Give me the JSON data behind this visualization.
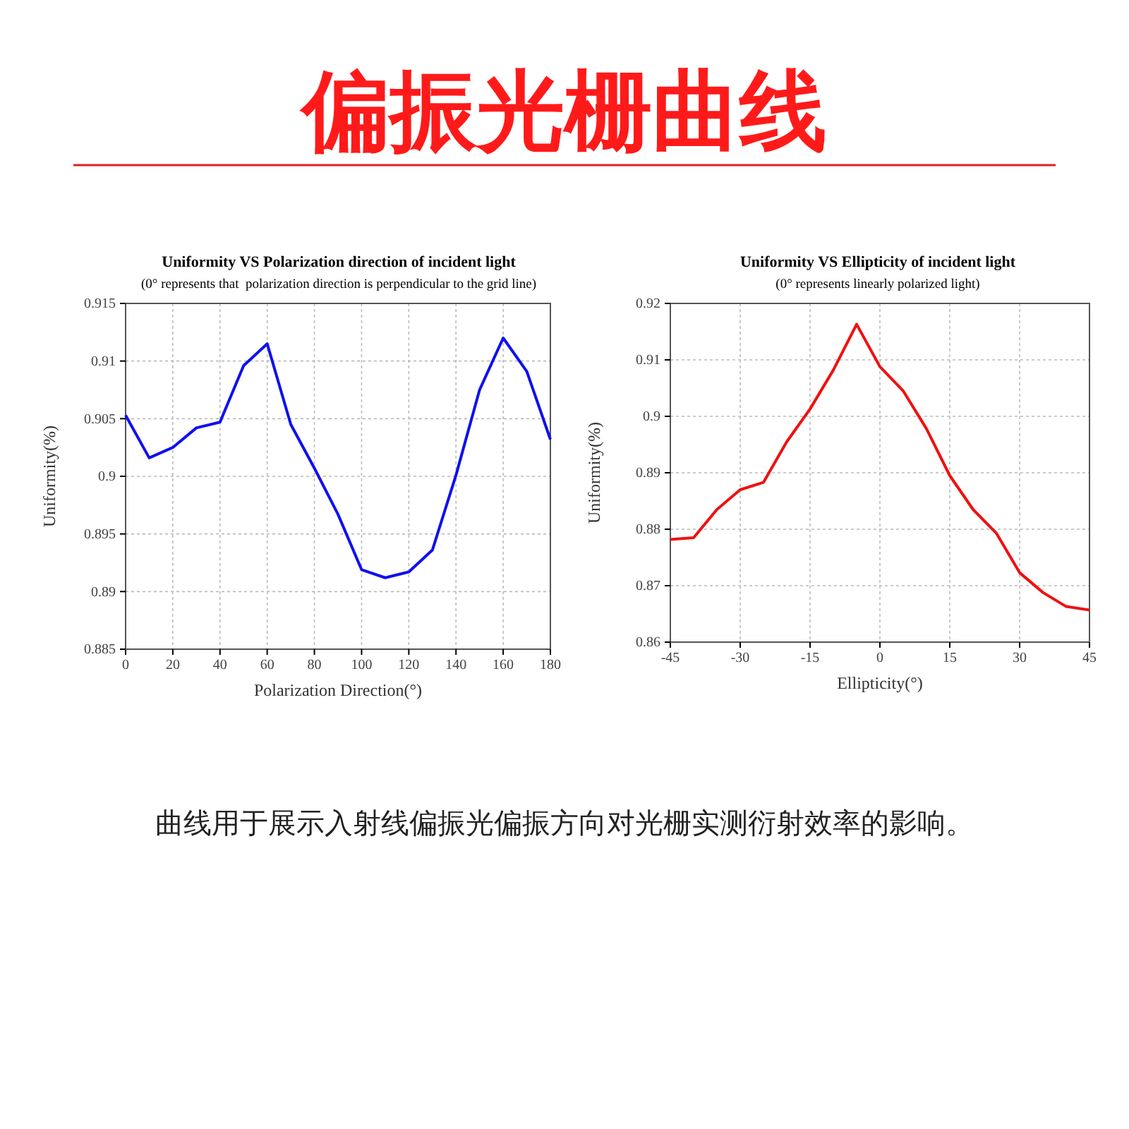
{
  "chart_data": [
    {
      "type": "other",
      "title": "偏振光栅曲线",
      "annotations": [
        "曲线用于展示入射线偏振光偏振方向对光栅实测衍射效率的影响。"
      ]
    },
    {
      "type": "line",
      "title": "Uniformity VS Polarization direction of incident light",
      "subtitle": "(0° represents that  polarization direction is perpendicular to the grid line)",
      "xlabel": "Polarization Direction(°)",
      "ylabel": "Uniformity(%)",
      "x": [
        0,
        10,
        20,
        30,
        40,
        50,
        60,
        70,
        80,
        90,
        100,
        110,
        120,
        130,
        140,
        150,
        160,
        170,
        180
      ],
      "series": [
        {
          "color": "#1010f0",
          "values": [
            0.9053,
            0.9016,
            0.9025,
            0.9042,
            0.9047,
            0.9096,
            0.9115,
            0.9045,
            0.9007,
            0.8967,
            0.8919,
            0.8912,
            0.8917,
            0.8936,
            0.9001,
            0.9075,
            0.912,
            0.9091,
            0.9032
          ]
        }
      ],
      "xlim": [
        0,
        180
      ],
      "xticks": [
        0,
        20,
        40,
        60,
        80,
        100,
        120,
        140,
        160,
        180
      ],
      "ylim": [
        0.885,
        0.915
      ],
      "yticks": [
        0.885,
        0.89,
        0.895,
        0.9,
        0.905,
        0.91,
        0.915
      ],
      "grid": true,
      "marker": "none",
      "line_style": "solid"
    },
    {
      "type": "line",
      "title": "Uniformity VS Ellipticity of incident light",
      "subtitle": "(0° represents linearly polarized light)",
      "xlabel": "Ellipticity(°)",
      "ylabel": "Uniformity(%)",
      "x": [
        -45,
        -40,
        -35,
        -30,
        -25,
        -20,
        -15,
        -10,
        -5,
        0,
        5,
        10,
        15,
        20,
        25,
        30,
        35,
        40,
        45
      ],
      "series": [
        {
          "color": "#f01010",
          "values": [
            0.8782,
            0.8785,
            0.8835,
            0.887,
            0.8883,
            0.8955,
            0.9013,
            0.9082,
            0.9163,
            0.9088,
            0.9045,
            0.8978,
            0.8895,
            0.8835,
            0.8793,
            0.8723,
            0.8688,
            0.8663,
            0.8657
          ]
        }
      ],
      "xlim": [
        -45,
        45
      ],
      "xticks": [
        -45,
        -30,
        -15,
        0,
        15,
        30,
        45
      ],
      "ylim": [
        0.86,
        0.92
      ],
      "yticks": [
        0.86,
        0.87,
        0.88,
        0.89,
        0.9,
        0.91,
        0.92
      ],
      "grid": true,
      "marker": "none",
      "line_style": "solid"
    }
  ]
}
